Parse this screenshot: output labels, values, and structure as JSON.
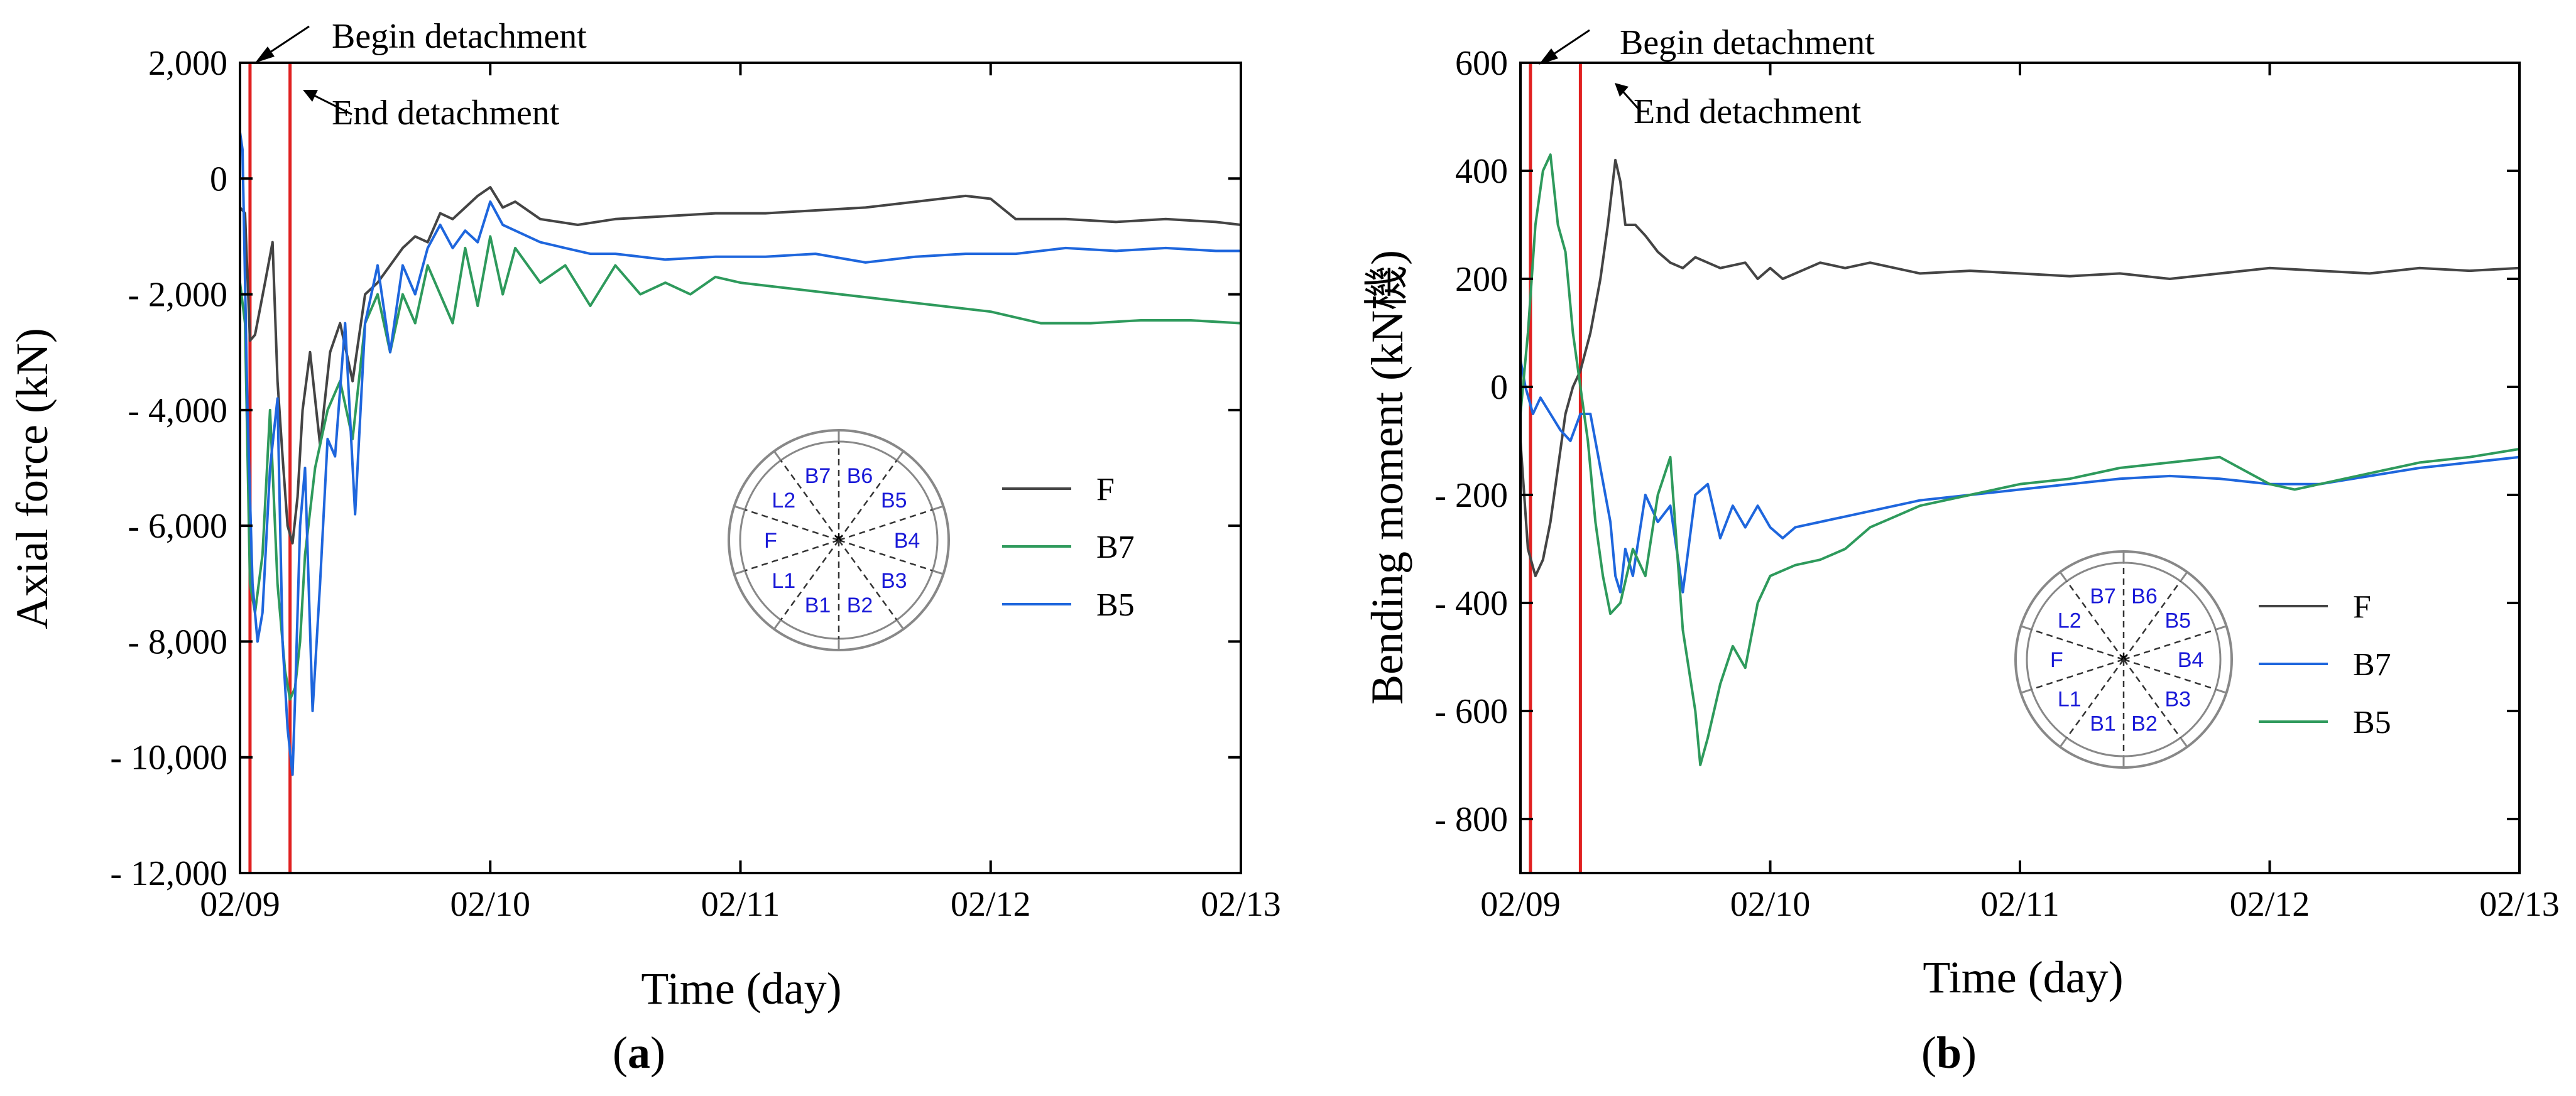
{
  "chart_data": [
    {
      "panel": "(a)",
      "panel_letter": "a",
      "type": "line",
      "xlabel": "Time (day)",
      "ylabel": "Axial force (kN)",
      "xlim": [
        0,
        4
      ],
      "ylim": [
        -12000,
        2000
      ],
      "xticks": [
        0,
        1,
        2,
        3,
        4
      ],
      "xtick_labels": [
        "02/09",
        "02/10",
        "02/11",
        "02/12",
        "02/13"
      ],
      "yticks": [
        2000,
        0,
        -2000,
        -4000,
        -6000,
        -8000,
        -10000,
        -12000
      ],
      "ytick_labels": [
        "2,000",
        "0",
        "- 2,000",
        "- 4,000",
        "- 6,000",
        "- 8,000",
        "- 10,000",
        "- 12,000"
      ],
      "vlines": [
        0.04,
        0.2
      ],
      "annotations": [
        {
          "text": "Begin detachment",
          "x": 0.04
        },
        {
          "text": "End detachment",
          "x": 0.2
        }
      ],
      "legend_position": "center-right",
      "inset_labels": [
        "B6",
        "B5",
        "B4",
        "B3",
        "B2",
        "B1",
        "L1",
        "F",
        "L2",
        "B7"
      ],
      "series": [
        {
          "name": "F",
          "color": "#444444",
          "x": [
            0,
            0.02,
            0.04,
            0.06,
            0.1,
            0.13,
            0.15,
            0.17,
            0.19,
            0.21,
            0.23,
            0.25,
            0.28,
            0.32,
            0.36,
            0.4,
            0.45,
            0.5,
            0.55,
            0.6,
            0.65,
            0.7,
            0.75,
            0.8,
            0.85,
            0.9,
            0.95,
            1.0,
            1.05,
            1.1,
            1.2,
            1.35,
            1.5,
            1.7,
            1.9,
            2.1,
            2.3,
            2.5,
            2.7,
            2.9,
            3.0,
            3.1,
            3.3,
            3.5,
            3.7,
            3.9,
            4.0
          ],
          "y": [
            -500,
            -600,
            -2800,
            -2700,
            -1800,
            -1100,
            -3500,
            -4800,
            -6000,
            -6300,
            -5500,
            -4000,
            -3000,
            -4600,
            -3000,
            -2500,
            -3500,
            -2000,
            -1800,
            -1500,
            -1200,
            -1000,
            -1100,
            -600,
            -700,
            -500,
            -300,
            -150,
            -500,
            -400,
            -700,
            -800,
            -700,
            -650,
            -600,
            -600,
            -550,
            -500,
            -400,
            -300,
            -350,
            -700,
            -700,
            -750,
            -700,
            -750,
            -800
          ]
        },
        {
          "name": "B7",
          "color": "#2e9a5c",
          "x": [
            0,
            0.02,
            0.04,
            0.06,
            0.09,
            0.12,
            0.15,
            0.18,
            0.2,
            0.22,
            0.24,
            0.26,
            0.3,
            0.35,
            0.4,
            0.45,
            0.5,
            0.55,
            0.6,
            0.65,
            0.7,
            0.75,
            0.8,
            0.85,
            0.9,
            0.95,
            1.0,
            1.05,
            1.1,
            1.2,
            1.3,
            1.4,
            1.5,
            1.6,
            1.7,
            1.8,
            1.9,
            2.0,
            2.2,
            2.4,
            2.6,
            2.8,
            3.0,
            3.2,
            3.4,
            3.6,
            3.8,
            4.0
          ],
          "y": [
            -1800,
            -2500,
            -7000,
            -7500,
            -6500,
            -4000,
            -7000,
            -8500,
            -9000,
            -8800,
            -8000,
            -6500,
            -5000,
            -4000,
            -3500,
            -4500,
            -2500,
            -2000,
            -3000,
            -2000,
            -2500,
            -1500,
            -2000,
            -2500,
            -1200,
            -2200,
            -1000,
            -2000,
            -1200,
            -1800,
            -1500,
            -2200,
            -1500,
            -2000,
            -1800,
            -2000,
            -1700,
            -1800,
            -1900,
            -2000,
            -2100,
            -2200,
            -2300,
            -2500,
            -2500,
            -2450,
            -2450,
            -2500
          ]
        },
        {
          "name": "B5",
          "color": "#1e66dd",
          "x": [
            0,
            0.01,
            0.03,
            0.05,
            0.07,
            0.09,
            0.12,
            0.15,
            0.17,
            0.19,
            0.21,
            0.22,
            0.24,
            0.26,
            0.29,
            0.32,
            0.35,
            0.38,
            0.42,
            0.46,
            0.5,
            0.55,
            0.6,
            0.65,
            0.7,
            0.75,
            0.8,
            0.85,
            0.9,
            0.95,
            1.0,
            1.05,
            1.1,
            1.2,
            1.3,
            1.4,
            1.5,
            1.7,
            1.9,
            2.1,
            2.3,
            2.5,
            2.7,
            2.9,
            3.1,
            3.3,
            3.5,
            3.7,
            3.9,
            4.0
          ],
          "y": [
            800,
            500,
            -4000,
            -7000,
            -8000,
            -7500,
            -5000,
            -3800,
            -8000,
            -9500,
            -10300,
            -9000,
            -6000,
            -5000,
            -9200,
            -7000,
            -4500,
            -4800,
            -2500,
            -5800,
            -2500,
            -1500,
            -3000,
            -1500,
            -2000,
            -1200,
            -800,
            -1200,
            -900,
            -1100,
            -400,
            -800,
            -900,
            -1100,
            -1200,
            -1300,
            -1300,
            -1400,
            -1350,
            -1350,
            -1300,
            -1450,
            -1350,
            -1300,
            -1300,
            -1200,
            -1250,
            -1200,
            -1250,
            -1250
          ]
        }
      ]
    },
    {
      "panel": "(b)",
      "panel_letter": "b",
      "type": "line",
      "xlabel": "Time (day)",
      "ylabel": "Bending moment (kN機)",
      "xlim": [
        0,
        4
      ],
      "ylim": [
        -900,
        600
      ],
      "xticks": [
        0,
        1,
        2,
        3,
        4
      ],
      "xtick_labels": [
        "02/09",
        "02/10",
        "02/11",
        "02/12",
        "02/13"
      ],
      "yticks": [
        600,
        400,
        200,
        0,
        -200,
        -400,
        -600,
        -800
      ],
      "ytick_labels": [
        "600",
        "400",
        "200",
        "0",
        "- 200",
        "- 400",
        "- 600",
        "- 800"
      ],
      "vlines": [
        0.04,
        0.24
      ],
      "annotations": [
        {
          "text": "Begin detachment",
          "x": 0.04
        },
        {
          "text": "End detachment",
          "x": 0.24
        }
      ],
      "legend_position": "lower-right",
      "inset_labels": [
        "B6",
        "B5",
        "B4",
        "B3",
        "B2",
        "B1",
        "L1",
        "F",
        "L2",
        "B7"
      ],
      "series": [
        {
          "name": "F",
          "color": "#444444",
          "x": [
            0,
            0.03,
            0.06,
            0.09,
            0.12,
            0.15,
            0.18,
            0.21,
            0.24,
            0.28,
            0.32,
            0.35,
            0.38,
            0.4,
            0.42,
            0.46,
            0.5,
            0.55,
            0.6,
            0.65,
            0.7,
            0.8,
            0.9,
            0.95,
            1.0,
            1.05,
            1.1,
            1.2,
            1.3,
            1.4,
            1.5,
            1.6,
            1.8,
            2.0,
            2.2,
            2.4,
            2.6,
            2.8,
            3.0,
            3.2,
            3.4,
            3.6,
            3.8,
            4.0
          ],
          "y": [
            -100,
            -300,
            -350,
            -320,
            -250,
            -150,
            -50,
            0,
            30,
            100,
            200,
            300,
            420,
            380,
            300,
            300,
            280,
            250,
            230,
            220,
            240,
            220,
            230,
            200,
            220,
            200,
            210,
            230,
            220,
            230,
            220,
            210,
            215,
            210,
            205,
            210,
            200,
            210,
            220,
            215,
            210,
            220,
            215,
            220
          ]
        },
        {
          "name": "B7",
          "color": "#1e66dd",
          "x": [
            0,
            0.02,
            0.05,
            0.08,
            0.12,
            0.16,
            0.2,
            0.24,
            0.28,
            0.32,
            0.36,
            0.38,
            0.4,
            0.42,
            0.45,
            0.5,
            0.55,
            0.6,
            0.65,
            0.7,
            0.75,
            0.8,
            0.85,
            0.9,
            0.95,
            1.0,
            1.05,
            1.1,
            1.2,
            1.3,
            1.4,
            1.5,
            1.6,
            1.8,
            2.0,
            2.2,
            2.4,
            2.6,
            2.8,
            3.0,
            3.2,
            3.4,
            3.6,
            3.8,
            4.0
          ],
          "y": [
            50,
            0,
            -50,
            -20,
            -50,
            -80,
            -100,
            -50,
            -50,
            -150,
            -250,
            -350,
            -380,
            -300,
            -350,
            -200,
            -250,
            -220,
            -380,
            -200,
            -180,
            -280,
            -220,
            -260,
            -220,
            -260,
            -280,
            -260,
            -250,
            -240,
            -230,
            -220,
            -210,
            -200,
            -190,
            -180,
            -170,
            -165,
            -170,
            -180,
            -180,
            -165,
            -150,
            -140,
            -130
          ]
        },
        {
          "name": "B5",
          "color": "#2e9a5c",
          "x": [
            0,
            0.03,
            0.06,
            0.09,
            0.12,
            0.15,
            0.18,
            0.21,
            0.24,
            0.27,
            0.3,
            0.33,
            0.36,
            0.4,
            0.45,
            0.5,
            0.55,
            0.6,
            0.65,
            0.7,
            0.72,
            0.75,
            0.8,
            0.85,
            0.9,
            0.95,
            1.0,
            1.1,
            1.2,
            1.3,
            1.4,
            1.5,
            1.6,
            1.8,
            2.0,
            2.2,
            2.4,
            2.6,
            2.8,
            3.0,
            3.1,
            3.2,
            3.4,
            3.6,
            3.8,
            4.0
          ],
          "y": [
            -50,
            100,
            300,
            400,
            430,
            300,
            250,
            100,
            0,
            -100,
            -250,
            -350,
            -420,
            -400,
            -300,
            -350,
            -200,
            -130,
            -450,
            -600,
            -700,
            -650,
            -550,
            -480,
            -520,
            -400,
            -350,
            -330,
            -320,
            -300,
            -260,
            -240,
            -220,
            -200,
            -180,
            -170,
            -150,
            -140,
            -130,
            -180,
            -190,
            -180,
            -160,
            -140,
            -130,
            -115
          ]
        }
      ]
    }
  ]
}
